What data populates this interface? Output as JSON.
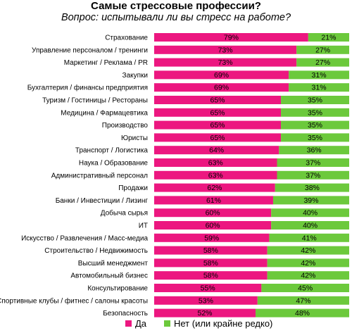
{
  "chart_data": {
    "type": "bar",
    "orientation": "horizontal",
    "stacked": true,
    "title": "Самые стрессовые профессии?",
    "subtitle": "Вопрос: испытывали ли вы стресс на работе?",
    "categories": [
      "Страхование",
      "Управление персоналом / тренинги",
      "Маркетинг / Реклама / PR",
      "Закупки",
      "Бухгалтерия / финансы предприятия",
      "Туризм / Гостиницы / Рестораны",
      "Медицина / Фармацевтика",
      "Производство",
      "Юристы",
      "Транспорт / Логистика",
      "Наука / Образование",
      "Административный персонал",
      "Продажи",
      "Банки / Инвестиции / Лизинг",
      "Добыча сырья",
      "ИТ",
      "Искусство / Развлечения / Масс-медиа",
      "Строительство / Недвижимость",
      "Высший менеджмент",
      "Автомобильный бизнес",
      "Консультирование",
      "Спортивные клубы / фитнес / салоны красоты",
      "Безопасность"
    ],
    "series": [
      {
        "name": "Да",
        "color": "#ec1780",
        "values": [
          79,
          73,
          73,
          69,
          69,
          65,
          65,
          65,
          65,
          64,
          63,
          63,
          62,
          61,
          60,
          60,
          59,
          58,
          58,
          58,
          55,
          53,
          52
        ]
      },
      {
        "name": "Нет (или крайне редко)",
        "color": "#6cc93c",
        "values": [
          21,
          27,
          27,
          31,
          31,
          35,
          35,
          35,
          35,
          36,
          37,
          37,
          38,
          39,
          40,
          40,
          41,
          42,
          42,
          42,
          45,
          47,
          48
        ]
      }
    ],
    "value_suffix": "%",
    "xlim": [
      0,
      100
    ],
    "grid": false,
    "legend_position": "bottom"
  }
}
